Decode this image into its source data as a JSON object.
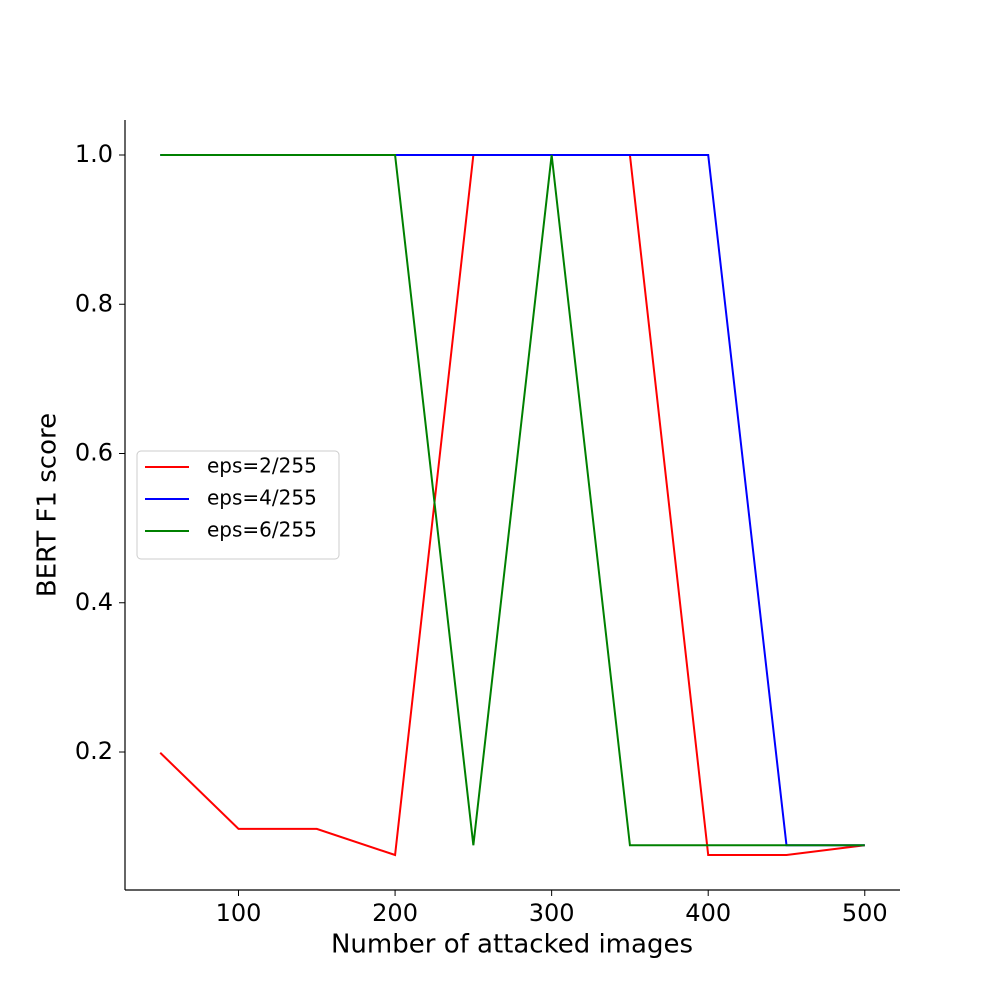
{
  "chart_data": {
    "type": "line",
    "x_label": "Number of attacked images",
    "y_label": "BERT F1 score",
    "x": [
      50,
      100,
      150,
      200,
      250,
      300,
      350,
      400,
      450,
      500
    ],
    "series": [
      {
        "name": "eps=2/255",
        "color": "#ff0000",
        "values": [
          0.199,
          0.097,
          0.097,
          0.062,
          1.0,
          1.0,
          1.0,
          0.062,
          0.062,
          0.075
        ]
      },
      {
        "name": "eps=4/255",
        "color": "#0000ff",
        "values": [
          1.0,
          1.0,
          1.0,
          1.0,
          1.0,
          1.0,
          1.0,
          1.0,
          0.075,
          0.075
        ]
      },
      {
        "name": "eps=6/255",
        "color": "#008000",
        "values": [
          1.0,
          1.0,
          1.0,
          1.0,
          0.075,
          1.0,
          0.075,
          0.075,
          0.075,
          0.075
        ]
      }
    ],
    "xlim": [
      27.5,
      522.5
    ],
    "xticks": [
      100,
      200,
      300,
      400,
      500
    ],
    "ylim": [
      0.0151,
      1.0469
    ],
    "yticks": [
      0.2,
      0.4,
      0.6,
      0.8,
      {
        "value": 1.0,
        "label": "1.0"
      }
    ],
    "legend": "center left"
  }
}
